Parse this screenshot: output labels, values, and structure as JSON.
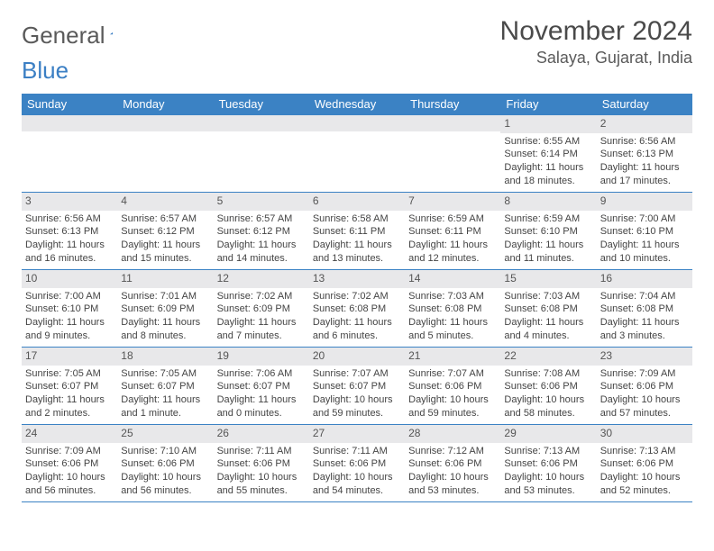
{
  "logo": {
    "word1": "General",
    "word2": "Blue"
  },
  "title": "November 2024",
  "location": "Salaya, Gujarat, India",
  "day_headers": [
    "Sunday",
    "Monday",
    "Tuesday",
    "Wednesday",
    "Thursday",
    "Friday",
    "Saturday"
  ],
  "colors": {
    "header_bg": "#3b82c4",
    "header_text": "#ffffff",
    "daynum_bg": "#e8e8ea",
    "cell_border": "#3b82c4",
    "text": "#444444",
    "logo_gray": "#5a5a5a",
    "logo_blue": "#3b7fc4"
  },
  "fonts": {
    "family": "Arial, Helvetica, sans-serif",
    "title_size_pt": 22,
    "location_size_pt": 13,
    "header_size_pt": 10,
    "cell_size_pt": 8
  },
  "layout": {
    "cols": 7,
    "rows": 5,
    "leading_blanks": 5
  },
  "days": [
    {
      "n": "1",
      "sr": "Sunrise: 6:55 AM",
      "ss": "Sunset: 6:14 PM",
      "dl": "Daylight: 11 hours and 18 minutes."
    },
    {
      "n": "2",
      "sr": "Sunrise: 6:56 AM",
      "ss": "Sunset: 6:13 PM",
      "dl": "Daylight: 11 hours and 17 minutes."
    },
    {
      "n": "3",
      "sr": "Sunrise: 6:56 AM",
      "ss": "Sunset: 6:13 PM",
      "dl": "Daylight: 11 hours and 16 minutes."
    },
    {
      "n": "4",
      "sr": "Sunrise: 6:57 AM",
      "ss": "Sunset: 6:12 PM",
      "dl": "Daylight: 11 hours and 15 minutes."
    },
    {
      "n": "5",
      "sr": "Sunrise: 6:57 AM",
      "ss": "Sunset: 6:12 PM",
      "dl": "Daylight: 11 hours and 14 minutes."
    },
    {
      "n": "6",
      "sr": "Sunrise: 6:58 AM",
      "ss": "Sunset: 6:11 PM",
      "dl": "Daylight: 11 hours and 13 minutes."
    },
    {
      "n": "7",
      "sr": "Sunrise: 6:59 AM",
      "ss": "Sunset: 6:11 PM",
      "dl": "Daylight: 11 hours and 12 minutes."
    },
    {
      "n": "8",
      "sr": "Sunrise: 6:59 AM",
      "ss": "Sunset: 6:10 PM",
      "dl": "Daylight: 11 hours and 11 minutes."
    },
    {
      "n": "9",
      "sr": "Sunrise: 7:00 AM",
      "ss": "Sunset: 6:10 PM",
      "dl": "Daylight: 11 hours and 10 minutes."
    },
    {
      "n": "10",
      "sr": "Sunrise: 7:00 AM",
      "ss": "Sunset: 6:10 PM",
      "dl": "Daylight: 11 hours and 9 minutes."
    },
    {
      "n": "11",
      "sr": "Sunrise: 7:01 AM",
      "ss": "Sunset: 6:09 PM",
      "dl": "Daylight: 11 hours and 8 minutes."
    },
    {
      "n": "12",
      "sr": "Sunrise: 7:02 AM",
      "ss": "Sunset: 6:09 PM",
      "dl": "Daylight: 11 hours and 7 minutes."
    },
    {
      "n": "13",
      "sr": "Sunrise: 7:02 AM",
      "ss": "Sunset: 6:08 PM",
      "dl": "Daylight: 11 hours and 6 minutes."
    },
    {
      "n": "14",
      "sr": "Sunrise: 7:03 AM",
      "ss": "Sunset: 6:08 PM",
      "dl": "Daylight: 11 hours and 5 minutes."
    },
    {
      "n": "15",
      "sr": "Sunrise: 7:03 AM",
      "ss": "Sunset: 6:08 PM",
      "dl": "Daylight: 11 hours and 4 minutes."
    },
    {
      "n": "16",
      "sr": "Sunrise: 7:04 AM",
      "ss": "Sunset: 6:08 PM",
      "dl": "Daylight: 11 hours and 3 minutes."
    },
    {
      "n": "17",
      "sr": "Sunrise: 7:05 AM",
      "ss": "Sunset: 6:07 PM",
      "dl": "Daylight: 11 hours and 2 minutes."
    },
    {
      "n": "18",
      "sr": "Sunrise: 7:05 AM",
      "ss": "Sunset: 6:07 PM",
      "dl": "Daylight: 11 hours and 1 minute."
    },
    {
      "n": "19",
      "sr": "Sunrise: 7:06 AM",
      "ss": "Sunset: 6:07 PM",
      "dl": "Daylight: 11 hours and 0 minutes."
    },
    {
      "n": "20",
      "sr": "Sunrise: 7:07 AM",
      "ss": "Sunset: 6:07 PM",
      "dl": "Daylight: 10 hours and 59 minutes."
    },
    {
      "n": "21",
      "sr": "Sunrise: 7:07 AM",
      "ss": "Sunset: 6:06 PM",
      "dl": "Daylight: 10 hours and 59 minutes."
    },
    {
      "n": "22",
      "sr": "Sunrise: 7:08 AM",
      "ss": "Sunset: 6:06 PM",
      "dl": "Daylight: 10 hours and 58 minutes."
    },
    {
      "n": "23",
      "sr": "Sunrise: 7:09 AM",
      "ss": "Sunset: 6:06 PM",
      "dl": "Daylight: 10 hours and 57 minutes."
    },
    {
      "n": "24",
      "sr": "Sunrise: 7:09 AM",
      "ss": "Sunset: 6:06 PM",
      "dl": "Daylight: 10 hours and 56 minutes."
    },
    {
      "n": "25",
      "sr": "Sunrise: 7:10 AM",
      "ss": "Sunset: 6:06 PM",
      "dl": "Daylight: 10 hours and 56 minutes."
    },
    {
      "n": "26",
      "sr": "Sunrise: 7:11 AM",
      "ss": "Sunset: 6:06 PM",
      "dl": "Daylight: 10 hours and 55 minutes."
    },
    {
      "n": "27",
      "sr": "Sunrise: 7:11 AM",
      "ss": "Sunset: 6:06 PM",
      "dl": "Daylight: 10 hours and 54 minutes."
    },
    {
      "n": "28",
      "sr": "Sunrise: 7:12 AM",
      "ss": "Sunset: 6:06 PM",
      "dl": "Daylight: 10 hours and 53 minutes."
    },
    {
      "n": "29",
      "sr": "Sunrise: 7:13 AM",
      "ss": "Sunset: 6:06 PM",
      "dl": "Daylight: 10 hours and 53 minutes."
    },
    {
      "n": "30",
      "sr": "Sunrise: 7:13 AM",
      "ss": "Sunset: 6:06 PM",
      "dl": "Daylight: 10 hours and 52 minutes."
    }
  ]
}
